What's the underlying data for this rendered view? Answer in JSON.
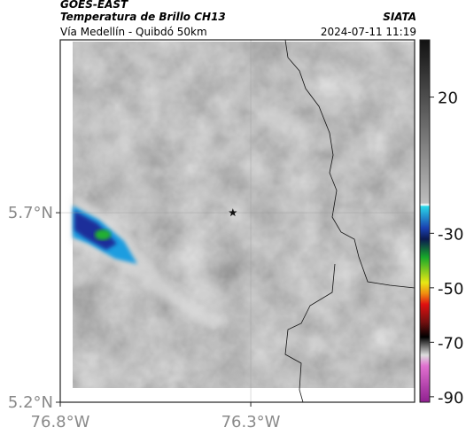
{
  "header": {
    "title": "GOES-EAST",
    "subtitle": "Temperatura de Brillo CH13",
    "source": "SIATA",
    "region": "Vía Medellín - Quibdó 50km",
    "datetime": "2024-07-11 11:19"
  },
  "map": {
    "xlim": [
      -76.8,
      -75.87
    ],
    "ylim": [
      5.2,
      6.156
    ],
    "xticks": [
      {
        "value": -76.8,
        "label": "76.8°W"
      },
      {
        "value": -76.3,
        "label": "76.3°W"
      }
    ],
    "yticks": [
      {
        "value": 5.2,
        "label": "5.2°N"
      },
      {
        "value": 5.7,
        "label": "5.7°N"
      }
    ],
    "grid": true,
    "marker": {
      "lon": -76.347,
      "lat": 5.7
    }
  },
  "colorbar": {
    "lim": [
      41,
      -92
    ],
    "ticks": [
      20,
      -30,
      -50,
      -70,
      -90
    ]
  }
}
